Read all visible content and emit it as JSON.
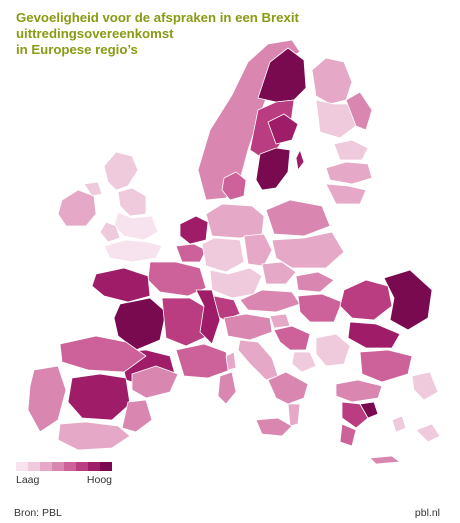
{
  "title": {
    "line1": "Gevoeligheid voor de afspraken in een Brexit uittredingsovereenkomst",
    "line2": "in Europese regio’s"
  },
  "legend": {
    "low_label": "Laag",
    "high_label": "Hoog",
    "colors": [
      "#f7e3ee",
      "#efc9dc",
      "#e5a8c6",
      "#d986b1",
      "#cc6299",
      "#b93d80",
      "#9e1c68",
      "#7a0a50"
    ]
  },
  "footer": {
    "source": "Bron: PBL",
    "brand": "pbl.nl"
  },
  "map": {
    "outline_color": "#ffffff",
    "regions": [
      {
        "name": "Iceland-free north Norway",
        "level": 4
      },
      {
        "name": "North Sweden",
        "level": 8
      },
      {
        "name": "Finland north",
        "level": 3
      },
      {
        "name": "Finland south",
        "level": 3
      },
      {
        "name": "South Sweden",
        "level": 8
      },
      {
        "name": "Stockholm",
        "level": 7
      },
      {
        "name": "Norway south",
        "level": 4
      },
      {
        "name": "Estonia",
        "level": 2
      },
      {
        "name": "Latvia",
        "level": 3
      },
      {
        "name": "Lithuania",
        "level": 3
      },
      {
        "name": "Ireland",
        "level": 3
      },
      {
        "name": "Scotland",
        "level": 1
      },
      {
        "name": "England",
        "level": 1
      },
      {
        "name": "Denmark",
        "level": 5
      },
      {
        "name": "Netherlands",
        "level": 7
      },
      {
        "name": "Belgium",
        "level": 5
      },
      {
        "name": "Germany",
        "level": 3
      },
      {
        "name": "Poland",
        "level": 4
      },
      {
        "name": "Czechia",
        "level": 3
      },
      {
        "name": "Slovakia",
        "level": 4
      },
      {
        "name": "Hungary",
        "level": 5
      },
      {
        "name": "Romania",
        "level": 7
      },
      {
        "name": "Bulgaria",
        "level": 5
      },
      {
        "name": "France west",
        "level": 7
      },
      {
        "name": "France east",
        "level": 5
      },
      {
        "name": "Switzerland",
        "level": 6
      },
      {
        "name": "Austria",
        "level": 4
      },
      {
        "name": "Italy",
        "level": 4
      },
      {
        "name": "Spain north",
        "level": 5
      },
      {
        "name": "Spain centre",
        "level": 7
      },
      {
        "name": "Portugal",
        "level": 4
      },
      {
        "name": "Greece",
        "level": 5
      },
      {
        "name": "Croatia",
        "level": 5
      },
      {
        "name": "Sardinia",
        "level": 4
      },
      {
        "name": "Sicily",
        "level": 4
      },
      {
        "name": "Cyprus",
        "level": 2
      }
    ]
  }
}
